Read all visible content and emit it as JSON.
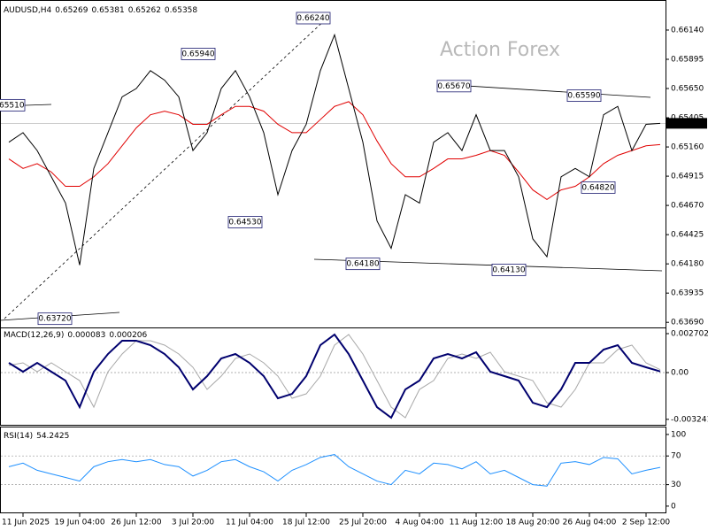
{
  "chart_data": [
    {
      "type": "line",
      "title": "AUDUSD,H4",
      "ohlc": [
        0.65269,
        0.65381,
        0.65262,
        0.65358
      ],
      "watermark": "Action Forex",
      "series": [
        {
          "color": "#000000",
          "values": [
            0.652,
            0.6528,
            0.6513,
            0.6491,
            0.6469,
            0.6417,
            0.6498,
            0.6528,
            0.6558,
            0.6565,
            0.658,
            0.6572,
            0.6558,
            0.6513,
            0.6528,
            0.6565,
            0.658,
            0.6558,
            0.6528,
            0.6476,
            0.6513,
            0.6535,
            0.658,
            0.661,
            0.6565,
            0.652,
            0.6454,
            0.6431,
            0.6476,
            0.6469,
            0.652,
            0.6528,
            0.6513,
            0.6543,
            0.6513,
            0.6513,
            0.6491,
            0.6439,
            0.6424,
            0.6491,
            0.6498,
            0.6491,
            0.6543,
            0.655,
            0.6513,
            0.6535,
            0.65358
          ]
        },
        {
          "color": "#e00000",
          "values": [
            0.6506,
            0.6498,
            0.6502,
            0.6495,
            0.6483,
            0.6483,
            0.6491,
            0.6502,
            0.6517,
            0.6532,
            0.6543,
            0.6546,
            0.6543,
            0.6535,
            0.6535,
            0.6543,
            0.655,
            0.655,
            0.6546,
            0.6535,
            0.6528,
            0.6528,
            0.6539,
            0.655,
            0.6554,
            0.6543,
            0.6521,
            0.6502,
            0.6491,
            0.6491,
            0.6498,
            0.6506,
            0.6506,
            0.6509,
            0.6513,
            0.6509,
            0.6495,
            0.648,
            0.6472,
            0.648,
            0.6483,
            0.6491,
            0.6502,
            0.6509,
            0.6513,
            0.6517,
            0.6518
          ]
        }
      ],
      "last": 0.65358,
      "ylim": [
        0.63647,
        0.66392
      ],
      "yticks": [
        {
          "value": 0.6614,
          "label": "0.66140"
        },
        0.65895,
        {
          "value": 0.6565,
          "label": "0.65650"
        },
        0.65405,
        {
          "value": 0.6516,
          "label": "0.65160"
        },
        0.64915,
        {
          "value": 0.6467,
          "label": "0.64670"
        },
        0.64425,
        {
          "value": 0.6418,
          "label": "0.64180"
        },
        0.63935,
        {
          "value": 0.6369,
          "label": "0.63690"
        }
      ],
      "annotations": [
        {
          "value": 0.6624,
          "label": "0.66240"
        },
        {
          "value": 0.6594,
          "label": "0.65940"
        },
        {
          "value": 0.6567,
          "label": "0.65670"
        },
        {
          "value": 0.6559,
          "label": "0.65590"
        },
        {
          "value": 0.6482,
          "label": "0.64820"
        },
        {
          "value": 0.6453,
          "label": "0.64530"
        },
        {
          "value": 0.6418,
          "label": "0.64180"
        },
        {
          "value": 0.6413,
          "label": "0.64130"
        },
        {
          "value": 0.6372,
          "label": "0.63720"
        },
        {
          "value": 0.6551,
          "label": "0.65510"
        }
      ]
    },
    {
      "type": "line",
      "title": "MACD(12,26,9)",
      "readings": [
        8.3e-05,
        0.000206
      ],
      "series": [
        {
          "color": "#00006e",
          "values": [
            0.000675,
            6.1e-05,
            0.000675,
            6.1e-05,
            -0.000553,
            -0.002395,
            6.1e-05,
            0.001289,
            0.00221,
            0.00221,
            0.001903,
            0.001289,
            0.000368,
            -0.001167,
            -0.000246,
            0.000982,
            0.001289,
            0.000675,
            -0.000246,
            -0.001781,
            -0.001474,
            -0.000246,
            0.001903,
            0.00264,
            0.001289,
            -0.000553,
            -0.002395,
            -0.003131,
            -0.001167,
            -0.000553,
            0.000982,
            0.001289,
            0.000982,
            0.001412,
            6.1e-05,
            -0.000246,
            -0.000553,
            -0.002088,
            -0.002395,
            -0.001167,
            0.000675,
            0.000675,
            0.001596,
            0.001903,
            0.000675,
            0.000368,
            8.3e-05
          ]
        },
        {
          "color": "#a8a8a8",
          "values": [
            0.0005,
            0.000675,
            6.1e-05,
            0.000675,
            6.1e-05,
            -0.000553,
            -0.002395,
            6.1e-05,
            0.001289,
            0.00221,
            0.00221,
            0.001903,
            0.001289,
            0.000368,
            -0.001167,
            -0.000246,
            0.000982,
            0.001289,
            0.000675,
            -0.000246,
            -0.001781,
            -0.001474,
            -0.000246,
            0.001903,
            0.00264,
            0.001289,
            -0.000553,
            -0.002395,
            -0.003131,
            -0.001167,
            -0.000553,
            0.000982,
            0.001289,
            0.000982,
            0.001412,
            6.1e-05,
            -0.000246,
            -0.000553,
            -0.002088,
            -0.002395,
            -0.001167,
            0.000675,
            0.000675,
            0.001596,
            0.001903,
            0.000675,
            0.000206
          ]
        }
      ],
      "ylim": [
        -0.00362,
        0.00313
      ],
      "yticks": [
        0.002702,
        {
          "value": 0,
          "label": "0.00"
        },
        -0.003241
      ],
      "levels": [
        0
      ]
    },
    {
      "type": "line",
      "title": "RSI(14)",
      "readings": [
        54.2425
      ],
      "series": [
        {
          "color": "#1e90ff",
          "values": [
            55,
            60,
            50,
            45,
            40,
            35,
            55,
            62,
            65,
            62,
            65,
            58,
            55,
            42,
            50,
            62,
            65,
            55,
            48,
            35,
            50,
            58,
            68,
            72,
            55,
            45,
            35,
            30,
            50,
            45,
            60,
            58,
            52,
            62,
            45,
            50,
            40,
            30,
            28,
            60,
            62,
            58,
            68,
            66,
            45,
            50,
            54
          ]
        }
      ],
      "ylim": [
        -10,
        111
      ],
      "yticks": [
        100,
        70,
        30,
        0
      ],
      "levels": [
        70,
        30
      ],
      "categories": [
        null,
        "11 Jun 2025",
        null,
        null,
        null,
        "19 Jun 04:00",
        null,
        null,
        null,
        "26 Jun 12:00",
        null,
        null,
        null,
        "3 Jul 20:00",
        null,
        null,
        null,
        "11 Jul 04:00",
        null,
        null,
        null,
        "18 Jul 12:00",
        null,
        null,
        null,
        "25 Jul 20:00",
        null,
        null,
        null,
        "4 Aug 04:00",
        null,
        null,
        null,
        "11 Aug 12:00",
        null,
        null,
        null,
        "18 Aug 20:00",
        null,
        null,
        null,
        "26 Aug 04:00",
        null,
        null,
        null,
        "2 Sep 12:00",
        null
      ]
    }
  ]
}
